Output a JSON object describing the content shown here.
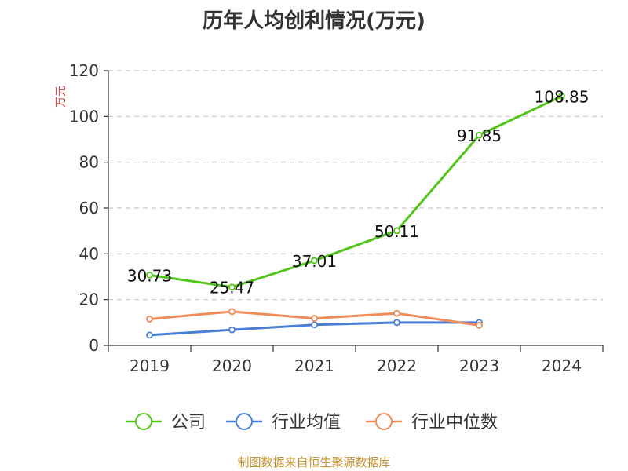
{
  "chart_data": {
    "type": "line",
    "title": "历年人均创利情况(万元)",
    "xlabel": "",
    "ylabel": "万元",
    "categories": [
      "2019",
      "2020",
      "2021",
      "2022",
      "2023",
      "2024"
    ],
    "ylim": [
      0,
      120
    ],
    "yticks": [
      0,
      20,
      40,
      60,
      80,
      100,
      120
    ],
    "grid": true,
    "legend_position": "bottom",
    "series": [
      {
        "name": "公司",
        "color": "#52c41a",
        "values": [
          30.73,
          25.47,
          37.01,
          50.11,
          91.85,
          108.85
        ],
        "labels": [
          "30.73",
          "25.47",
          "37.01",
          "50.11",
          "91.85",
          "108.85"
        ]
      },
      {
        "name": "行业均值",
        "color": "#4a7fd8",
        "values": [
          4.5,
          6.8,
          9.0,
          10.0,
          10.0,
          null
        ]
      },
      {
        "name": "行业中位数",
        "color": "#f08c5a",
        "values": [
          11.5,
          14.8,
          11.8,
          14.0,
          8.8,
          null
        ]
      }
    ]
  },
  "source_text": "制图数据来自恒生聚源数据库"
}
